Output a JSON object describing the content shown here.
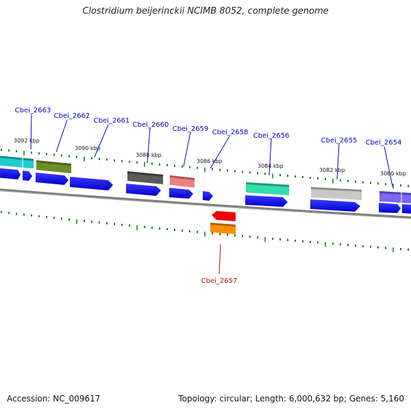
{
  "title": "Clostridium beijerinckii NCIMB 8052, complete genome",
  "footer": {
    "accession": "Accession: NC_009617",
    "summary": "Topology: circular; Length: 6,000,632 bp; Genes: 5,160"
  },
  "coordinates": [
    "3092 kbp",
    "3090 kbp",
    "3088 kbp",
    "3086 kbp",
    "3084 kbp",
    "3082 kbp",
    "3080 kbp"
  ],
  "gene_labels": [
    {
      "name": "Cbei_2663",
      "strand": "upper",
      "color": "#0000cc"
    },
    {
      "name": "Cbei_2662",
      "strand": "upper",
      "color": "#0000cc"
    },
    {
      "name": "Cbei_2661",
      "strand": "upper",
      "color": "#0000cc"
    },
    {
      "name": "Cbei_2660",
      "strand": "upper",
      "color": "#0000cc"
    },
    {
      "name": "Cbei_2659",
      "strand": "upper",
      "color": "#0000cc"
    },
    {
      "name": "Cbei_2658",
      "strand": "upper",
      "color": "#0000cc"
    },
    {
      "name": "Cbei_2656",
      "strand": "upper",
      "color": "#0000cc"
    },
    {
      "name": "Cbei_2655",
      "strand": "upper",
      "color": "#0000cc"
    },
    {
      "name": "Cbei_2654",
      "strand": "upper",
      "color": "#0000cc"
    },
    {
      "name": "Cbei_2657",
      "strand": "lower",
      "color": "#cc0000"
    }
  ],
  "colors": {
    "backbone": "#808080",
    "tick": "#008000",
    "cds": "#0000ee",
    "feature_cyan": "#22cccc",
    "feature_olive": "#6b8e23",
    "feature_darkgray": "#5a5a5a",
    "feature_pink": "#f08080",
    "feature_teal": "#33ddaa",
    "feature_lightgray": "#c8c8c8",
    "feature_slateblue": "#7b68ee",
    "feature_red": "#ee0000",
    "feature_orange": "#ff8c00"
  }
}
